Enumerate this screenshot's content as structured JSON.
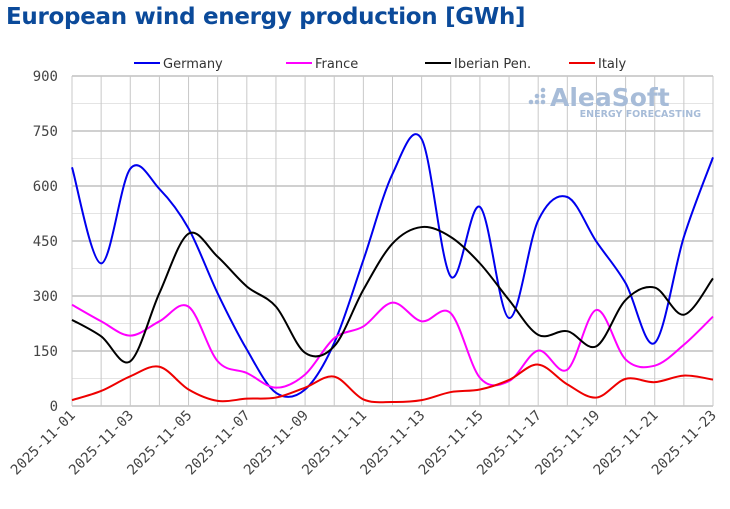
{
  "chart_data": {
    "type": "line",
    "title": "European wind energy production [GWh]",
    "xlabel": "",
    "ylabel": "",
    "ylim": [
      0,
      900
    ],
    "yticks": [
      0,
      150,
      300,
      450,
      600,
      750,
      900
    ],
    "grid": true,
    "legend_position": "top",
    "x": [
      "2025-11-01",
      "2025-11-02",
      "2025-11-03",
      "2025-11-04",
      "2025-11-05",
      "2025-11-06",
      "2025-11-07",
      "2025-11-08",
      "2025-11-09",
      "2025-11-10",
      "2025-11-11",
      "2025-11-12",
      "2025-11-13",
      "2025-11-14",
      "2025-11-15",
      "2025-11-16",
      "2025-11-17",
      "2025-11-18",
      "2025-11-19",
      "2025-11-20",
      "2025-11-21",
      "2025-11-22",
      "2025-11-23"
    ],
    "xtick_labels": [
      "2025-11-01",
      "2025-11-03",
      "2025-11-05",
      "2025-11-07",
      "2025-11-09",
      "2025-11-11",
      "2025-11-13",
      "2025-11-15",
      "2025-11-17",
      "2025-11-19",
      "2025-11-21",
      "2025-11-23"
    ],
    "series": [
      {
        "name": "Germany",
        "color": "#0000ee",
        "values": [
          651,
          389,
          647,
          592,
          484,
          307,
          154,
          36,
          45,
          172,
          398,
          633,
          728,
          353,
          543,
          240,
          506,
          570,
          448,
          335,
          172,
          461,
          678
        ]
      },
      {
        "name": "France",
        "color": "#ff00ff",
        "values": [
          276,
          231,
          192,
          231,
          271,
          122,
          90,
          50,
          86,
          185,
          217,
          282,
          231,
          253,
          77,
          68,
          151,
          99,
          262,
          127,
          110,
          167,
          244
        ]
      },
      {
        "name": "Iberian Pen.",
        "color": "#000000",
        "values": [
          235,
          190,
          122,
          308,
          470,
          407,
          326,
          271,
          145,
          163,
          317,
          443,
          488,
          461,
          389,
          289,
          194,
          204,
          163,
          289,
          323,
          249,
          348
        ]
      },
      {
        "name": "Italy",
        "color": "#ee0000",
        "values": [
          16,
          41,
          81,
          107,
          45,
          14,
          20,
          23,
          50,
          80,
          18,
          11,
          16,
          38,
          45,
          71,
          113,
          59,
          23,
          74,
          65,
          83,
          72
        ]
      }
    ]
  },
  "logo": {
    "name": "AleaSoft",
    "tagline": "ENERGY FORECASTING"
  }
}
